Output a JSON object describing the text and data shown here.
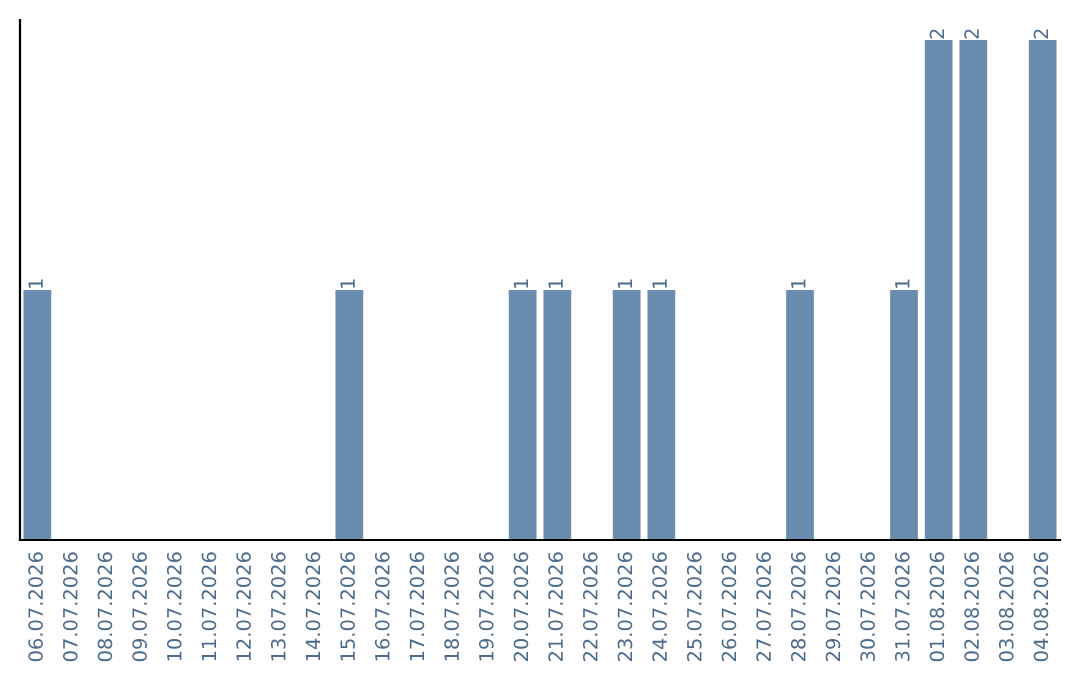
{
  "chart_data": {
    "type": "bar",
    "categories": [
      "06.07.2026",
      "07.07.2026",
      "08.07.2026",
      "09.07.2026",
      "10.07.2026",
      "11.07.2026",
      "12.07.2026",
      "13.07.2026",
      "14.07.2026",
      "15.07.2026",
      "16.07.2026",
      "17.07.2026",
      "18.07.2026",
      "19.07.2026",
      "20.07.2026",
      "21.07.2026",
      "22.07.2026",
      "23.07.2026",
      "24.07.2026",
      "25.07.2026",
      "26.07.2026",
      "27.07.2026",
      "28.07.2026",
      "29.07.2026",
      "30.07.2026",
      "31.07.2026",
      "01.08.2026",
      "02.08.2026",
      "03.08.2026",
      "04.08.2026"
    ],
    "values": [
      1,
      0,
      0,
      0,
      0,
      0,
      0,
      0,
      0,
      1,
      0,
      0,
      0,
      0,
      1,
      1,
      0,
      1,
      1,
      0,
      0,
      0,
      1,
      0,
      0,
      1,
      2,
      2,
      0,
      2
    ],
    "color": "#6a8caf",
    "value_labels": [
      "1",
      null,
      null,
      null,
      null,
      null,
      null,
      null,
      null,
      "1",
      null,
      null,
      null,
      null,
      "1",
      "1",
      null,
      "1",
      "1",
      null,
      null,
      null,
      "1",
      null,
      null,
      "1",
      "2",
      "2",
      null,
      "2"
    ],
    "ylim": [
      0,
      2.08
    ],
    "tick_labels": "x",
    "grid": false,
    "legend": false
  }
}
